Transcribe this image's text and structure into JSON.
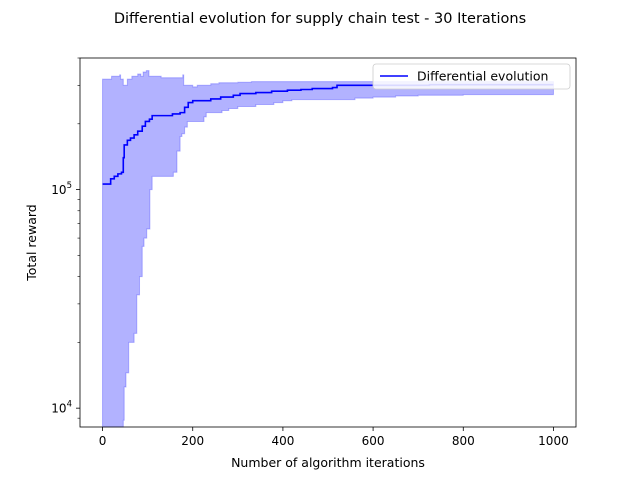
{
  "chart_data": {
    "type": "line",
    "title": "Differential evolution for supply chain test - 30 Iterations",
    "xlabel": "Number of algorithm iterations",
    "ylabel": "Total reward",
    "yscale": "log",
    "xlim": [
      -50,
      1050
    ],
    "ylim": [
      8200,
      400000
    ],
    "x_ticks": [
      0,
      200,
      400,
      600,
      800,
      1000
    ],
    "x_tick_labels": [
      "0",
      "200",
      "400",
      "600",
      "800",
      "1000"
    ],
    "y_ticks": [
      10000,
      100000
    ],
    "y_tick_labels": [
      {
        "base": "10",
        "exp": "4"
      },
      {
        "base": "10",
        "exp": "5"
      }
    ],
    "grid": false,
    "legend": {
      "placement": "top-right",
      "entries": [
        "Differential evolution"
      ]
    },
    "series": [
      {
        "name": "Differential evolution",
        "color": "#0000ff",
        "step": true,
        "points": [
          [
            0,
            106000
          ],
          [
            16,
            106000
          ],
          [
            18,
            112000
          ],
          [
            26,
            115000
          ],
          [
            34,
            118000
          ],
          [
            42,
            120000
          ],
          [
            46,
            140000
          ],
          [
            48,
            160000
          ],
          [
            55,
            168000
          ],
          [
            62,
            172000
          ],
          [
            70,
            178000
          ],
          [
            78,
            185000
          ],
          [
            88,
            195000
          ],
          [
            95,
            205000
          ],
          [
            104,
            210000
          ],
          [
            110,
            218000
          ],
          [
            150,
            218000
          ],
          [
            155,
            222000
          ],
          [
            172,
            225000
          ],
          [
            182,
            238000
          ],
          [
            190,
            250000
          ],
          [
            200,
            255000
          ],
          [
            235,
            255000
          ],
          [
            240,
            260000
          ],
          [
            262,
            265000
          ],
          [
            290,
            270000
          ],
          [
            305,
            275000
          ],
          [
            340,
            278000
          ],
          [
            375,
            282000
          ],
          [
            410,
            285000
          ],
          [
            440,
            287000
          ],
          [
            465,
            290000
          ],
          [
            510,
            293000
          ],
          [
            520,
            300000
          ],
          [
            700,
            300000
          ],
          [
            725,
            302000
          ],
          [
            1000,
            302000
          ]
        ]
      }
    ],
    "band": {
      "color": "#0000ff",
      "opacity": 0.3,
      "upper": [
        [
          0,
          320000
        ],
        [
          18,
          320000
        ],
        [
          20,
          330000
        ],
        [
          38,
          335000
        ],
        [
          40,
          320000
        ],
        [
          46,
          300000
        ],
        [
          55,
          320000
        ],
        [
          65,
          330000
        ],
        [
          78,
          338000
        ],
        [
          85,
          330000
        ],
        [
          90,
          345000
        ],
        [
          97,
          350000
        ],
        [
          103,
          330000
        ],
        [
          130,
          325000
        ],
        [
          178,
          335000
        ],
        [
          180,
          300000
        ],
        [
          196,
          300000
        ],
        [
          200,
          295000
        ],
        [
          210,
          300000
        ],
        [
          240,
          305000
        ],
        [
          258,
          308000
        ],
        [
          300,
          310000
        ],
        [
          328,
          310000
        ],
        [
          330,
          312000
        ],
        [
          1000,
          312000
        ]
      ],
      "lower": [
        [
          0,
          8200
        ],
        [
          44,
          8200
        ],
        [
          46,
          8800
        ],
        [
          48,
          12500
        ],
        [
          52,
          14500
        ],
        [
          58,
          20000
        ],
        [
          70,
          22000
        ],
        [
          76,
          33000
        ],
        [
          82,
          40000
        ],
        [
          88,
          55000
        ],
        [
          92,
          60000
        ],
        [
          98,
          66000
        ],
        [
          105,
          100000
        ],
        [
          110,
          115000
        ],
        [
          150,
          115000
        ],
        [
          157,
          120000
        ],
        [
          165,
          150000
        ],
        [
          172,
          175000
        ],
        [
          176,
          180000
        ],
        [
          182,
          193000
        ],
        [
          188,
          205000
        ],
        [
          225,
          215000
        ],
        [
          230,
          225000
        ],
        [
          265,
          230000
        ],
        [
          280,
          235000
        ],
        [
          300,
          240000
        ],
        [
          340,
          245000
        ],
        [
          380,
          250000
        ],
        [
          400,
          255000
        ],
        [
          420,
          258000
        ],
        [
          560,
          262000
        ],
        [
          600,
          265000
        ],
        [
          650,
          268000
        ],
        [
          700,
          270000
        ],
        [
          800,
          272000
        ],
        [
          1000,
          272000
        ]
      ]
    }
  }
}
